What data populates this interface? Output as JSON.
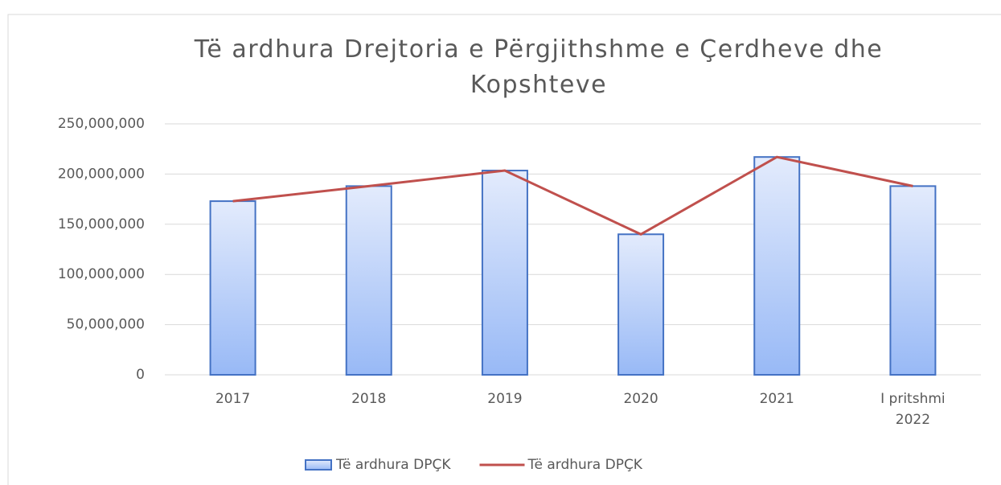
{
  "chart_data": {
    "type": "combo",
    "title": "Të ardhura Drejtoria e Përgjithshme e Çerdheve dhe Kopshteve",
    "categories": [
      "2017",
      "2018",
      "2019",
      "2020",
      "2021",
      "I pritshmi 2022"
    ],
    "series": [
      {
        "name": "Të ardhura DPÇK",
        "type": "bar",
        "color": "#4472c4",
        "values": [
          173000000,
          188000000,
          203500000,
          140000000,
          217000000,
          188000000
        ]
      },
      {
        "name": "Të ardhura DPÇK",
        "type": "line",
        "color": "#c0504d",
        "values": [
          173000000,
          188000000,
          203500000,
          140000000,
          217000000,
          188000000
        ]
      }
    ],
    "ylim": [
      0,
      250000000
    ],
    "yticks": [
      0,
      {
        "value": 50000000,
        "label": "50,000,000"
      },
      {
        "value": 100000000,
        "label": "100,000,000"
      },
      {
        "value": 150000000,
        "label": "150,000,000"
      },
      {
        "value": 200000000,
        "label": "200,000,000"
      },
      {
        "value": 250000000,
        "label": "250,000,000"
      }
    ],
    "grid": true,
    "legend": "bottom"
  }
}
